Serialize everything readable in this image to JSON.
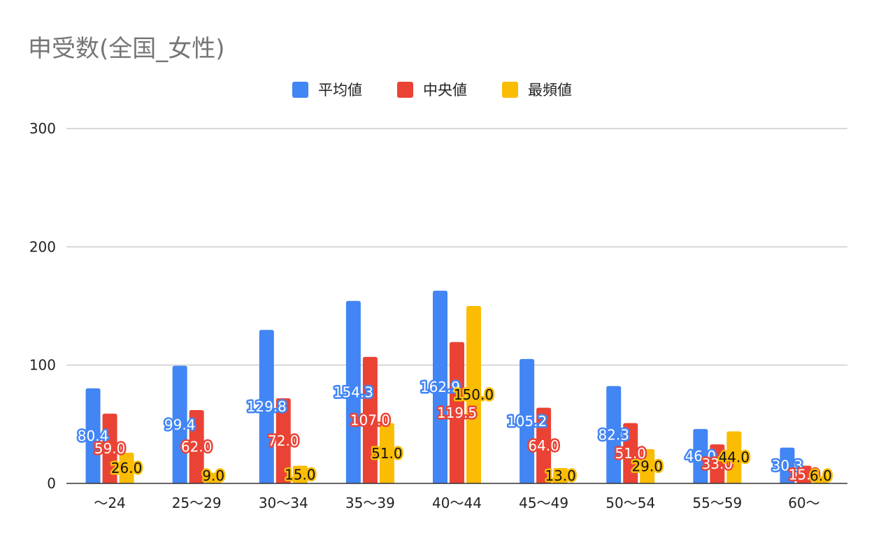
{
  "chart_data": {
    "type": "bar",
    "title": "申受数(全国_女性)",
    "xlabel": "",
    "ylabel": "",
    "categories": [
      "～24",
      "25～29",
      "30～34",
      "35～39",
      "40～44",
      "45～49",
      "50～54",
      "55～59",
      "60～"
    ],
    "series": [
      {
        "name": "平均値",
        "color": "#4285f4",
        "values": [
          80.4,
          99.4,
          129.8,
          154.3,
          162.9,
          105.2,
          82.3,
          46.0,
          30.3
        ],
        "labels": [
          "80.4",
          "99.4",
          "129.8",
          "154.3",
          "162.9",
          "105.2",
          "82.3",
          "46.0",
          "30.3"
        ]
      },
      {
        "name": "中央値",
        "color": "#ea4335",
        "values": [
          59.0,
          62.0,
          72.0,
          107.0,
          119.5,
          64.0,
          51.0,
          33.0,
          15.0
        ],
        "labels": [
          "59.0",
          "62.0",
          "72.0",
          "107.0",
          "119.5",
          "64.0",
          "51.0",
          "33.0",
          "15.0"
        ]
      },
      {
        "name": "最頻値",
        "color": "#fbbc04",
        "values": [
          26.0,
          9.0,
          15.0,
          51.0,
          150.0,
          13.0,
          29.0,
          44.0,
          6.0
        ],
        "labels": [
          "26.0",
          "9.0",
          "15.0",
          "51.0",
          "150.0",
          "13.0",
          "29.0",
          "44.0",
          "6.0"
        ]
      }
    ],
    "ylim": [
      0,
      300
    ],
    "yticks": [
      0,
      100,
      200,
      300
    ],
    "ytick_labels": [
      "0",
      "100",
      "200",
      "300"
    ],
    "grid": true,
    "legend_position": "top"
  }
}
